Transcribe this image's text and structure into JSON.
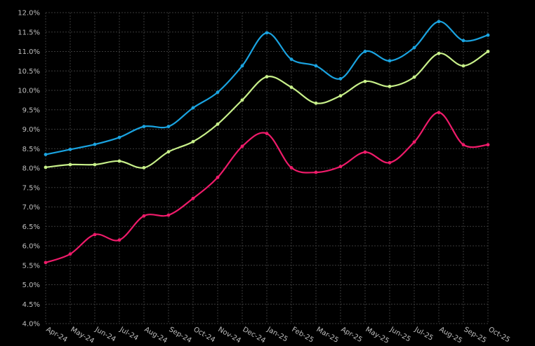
{
  "chart_data": {
    "type": "line",
    "title": "",
    "xlabel": "",
    "ylabel": "",
    "categories": [
      "Apr-24",
      "May-24",
      "Jun-24",
      "Jul-24",
      "Aug-24",
      "Sep-24",
      "Oct-24",
      "Nov-24",
      "Dec-24",
      "Jan-25",
      "Feb-25",
      "Mar-25",
      "Apr-25",
      "May-25",
      "Jun-25",
      "Jul-25",
      "Aug-25",
      "Sep-25",
      "Oct-25"
    ],
    "ylim": [
      4.0,
      12.0
    ],
    "y_ticks": [
      "4.0%",
      "4.5%",
      "5.0%",
      "5.5%",
      "6.0%",
      "6.5%",
      "7.0%",
      "7.5%",
      "8.0%",
      "8.5%",
      "9.0%",
      "9.5%",
      "10.0%",
      "10.5%",
      "11.0%",
      "11.5%",
      "12.0%"
    ],
    "grid": true,
    "legend": "none",
    "series": [
      {
        "color": "#1aa3e0",
        "values": [
          8.35,
          8.48,
          8.61,
          8.79,
          9.07,
          9.07,
          9.55,
          9.95,
          10.63,
          11.48,
          10.8,
          10.63,
          10.3,
          11.0,
          10.76,
          11.1,
          11.77,
          11.28,
          11.42
        ]
      },
      {
        "color": "#c8f08a",
        "values": [
          8.02,
          8.09,
          8.09,
          8.18,
          8.01,
          8.42,
          8.68,
          9.13,
          9.75,
          10.35,
          10.08,
          9.67,
          9.86,
          10.23,
          10.1,
          10.34,
          10.95,
          10.63,
          11.0
        ]
      },
      {
        "color": "#ef1b6a",
        "values": [
          5.57,
          5.79,
          6.29,
          6.15,
          6.77,
          6.79,
          7.22,
          7.76,
          8.56,
          8.89,
          8.01,
          7.89,
          8.04,
          8.41,
          8.14,
          8.67,
          9.43,
          8.6,
          8.6
        ]
      }
    ]
  },
  "style": {
    "background": "#000000",
    "grid_color": "#3a3a3a",
    "text_color": "#bfbfbf"
  }
}
